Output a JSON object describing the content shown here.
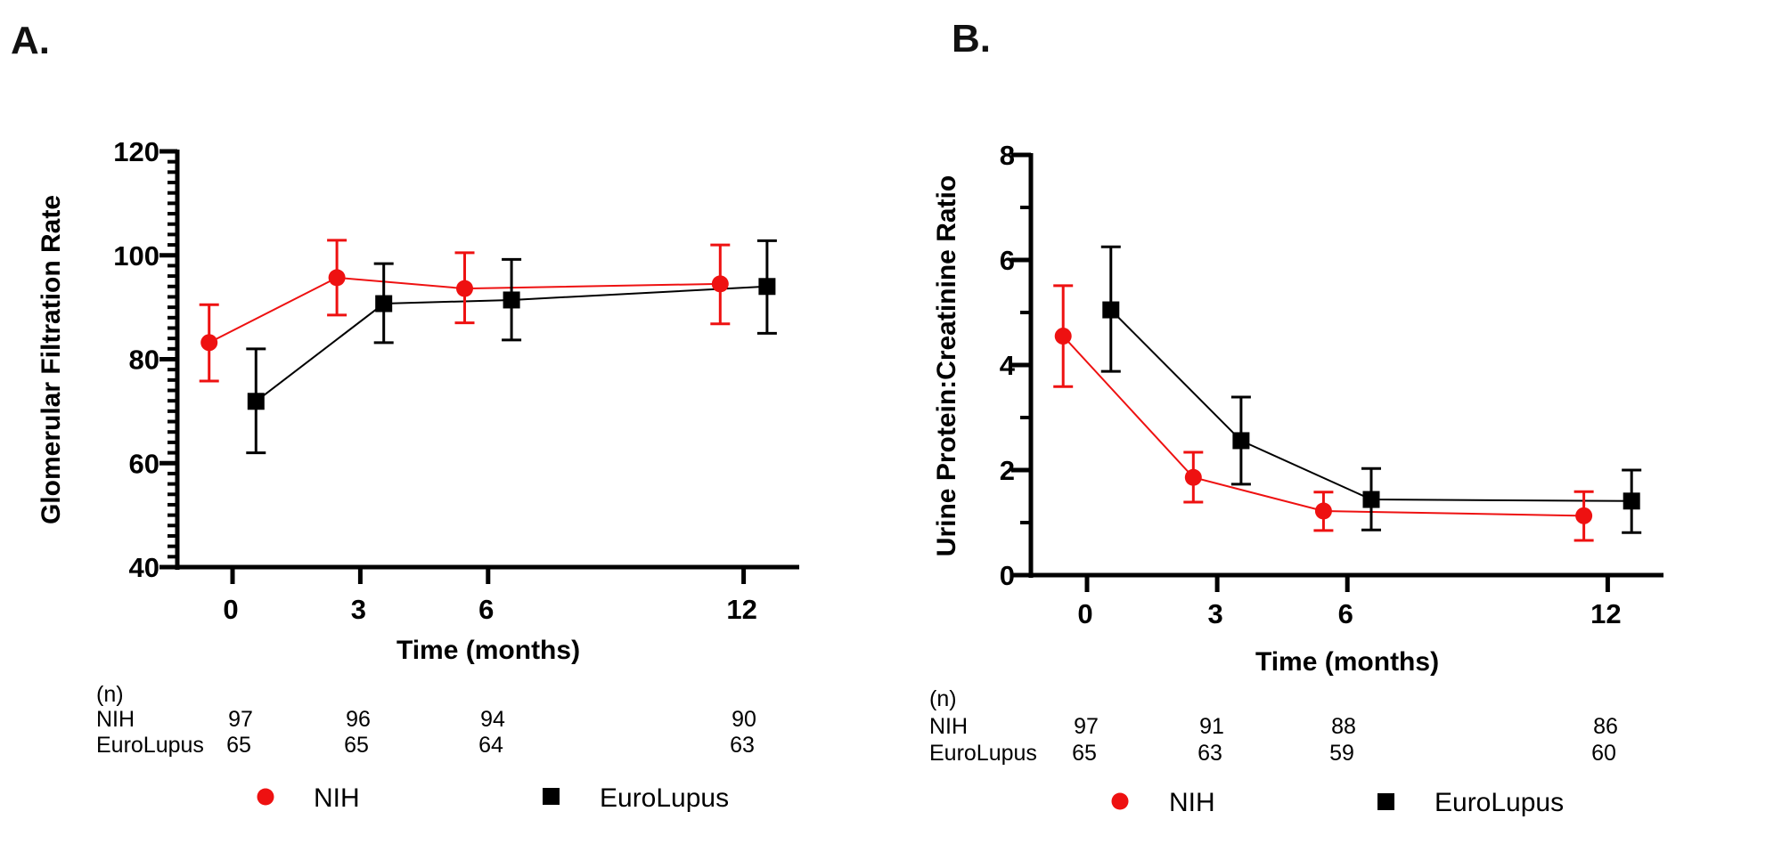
{
  "figure": {
    "panels": [
      "A.",
      "B."
    ]
  },
  "chart_data": [
    {
      "panel": "A.",
      "type": "line",
      "title": "",
      "xlabel": "Time (months)",
      "ylabel": "Glomerular Filtration Rate",
      "ylim": [
        40,
        120
      ],
      "y_major_ticks": [
        40,
        60,
        80,
        100,
        120
      ],
      "y_minor_step": 2,
      "xlim": [
        -1.3,
        13.5
      ],
      "x_ticks": [
        0,
        3,
        6,
        12
      ],
      "x_tick_labels": [
        "0",
        "3",
        "6",
        "12"
      ],
      "grid": false,
      "legend_position": "bottom",
      "series": [
        {
          "name": "NIH",
          "color": "#ee1111",
          "marker": "circle",
          "x": [
            -0.55,
            2.45,
            5.45,
            11.45
          ],
          "values": [
            83.2,
            95.7,
            93.6,
            94.5
          ],
          "err_low": [
            75.8,
            88.5,
            87.0,
            86.8
          ],
          "err_high": [
            90.5,
            102.9,
            100.5,
            102.0
          ]
        },
        {
          "name": "EuroLupus",
          "color": "#000000",
          "marker": "square",
          "x": [
            0.55,
            3.55,
            6.55,
            12.55
          ],
          "values": [
            71.9,
            90.7,
            91.4,
            94.0
          ],
          "err_low": [
            62.0,
            83.2,
            83.7,
            85.0
          ],
          "err_high": [
            82.0,
            98.4,
            99.2,
            102.8
          ]
        }
      ],
      "n_table": {
        "header": "(n)",
        "rows": [
          {
            "label": "NIH",
            "values": [
              "97",
              "96",
              "94",
              "90"
            ]
          },
          {
            "label": "EuroLupus",
            "values": [
              "65",
              "65",
              "64",
              "63"
            ]
          }
        ]
      }
    },
    {
      "panel": "B.",
      "type": "line",
      "title": "",
      "xlabel": "Time (months)",
      "ylabel": "Urine Protein:Creatinine Ratio",
      "ylim": [
        0,
        8
      ],
      "y_major_ticks": [
        0,
        2,
        4,
        6,
        8
      ],
      "y_minor_step": 1,
      "xlim": [
        -1.3,
        13.3
      ],
      "x_ticks": [
        0,
        3,
        6,
        12
      ],
      "x_tick_labels": [
        "0",
        "3",
        "6",
        "12"
      ],
      "grid": false,
      "legend_position": "bottom",
      "series": [
        {
          "name": "NIH",
          "color": "#ee1111",
          "marker": "circle",
          "x": [
            -0.55,
            2.45,
            5.45,
            11.45
          ],
          "values": [
            4.55,
            1.86,
            1.22,
            1.13
          ],
          "err_low": [
            3.59,
            1.39,
            0.85,
            0.66
          ],
          "err_high": [
            5.51,
            2.34,
            1.58,
            1.59
          ]
        },
        {
          "name": "EuroLupus",
          "color": "#000000",
          "marker": "square",
          "x": [
            0.55,
            3.55,
            6.55,
            12.55
          ],
          "values": [
            5.05,
            2.56,
            1.44,
            1.41
          ],
          "err_low": [
            3.88,
            1.73,
            0.86,
            0.81
          ],
          "err_high": [
            6.25,
            3.39,
            2.03,
            2.0
          ]
        }
      ],
      "n_table": {
        "header": "(n)",
        "rows": [
          {
            "label": "NIH",
            "values": [
              "97",
              "91",
              "88",
              "86"
            ]
          },
          {
            "label": "EuroLupus",
            "values": [
              "65",
              "63",
              "59",
              "60"
            ]
          }
        ]
      }
    }
  ]
}
